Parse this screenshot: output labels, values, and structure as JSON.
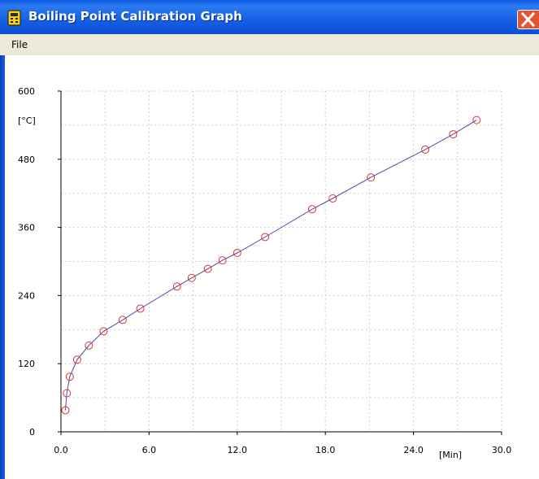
{
  "window": {
    "title": "Boiling Point Calibration Graph",
    "title_color": "#ffffff",
    "titlebar_color": "#0b5ce4",
    "close_color": "#e0562e"
  },
  "menu": {
    "items": [
      {
        "label": "File"
      }
    ]
  },
  "chart_data": {
    "type": "line",
    "title": "",
    "xlabel": "[Min]",
    "ylabel": "[°C]",
    "xlim": [
      0,
      30
    ],
    "ylim": [
      0,
      600
    ],
    "x_ticks": [
      "0.0",
      "6.0",
      "12.0",
      "18.0",
      "24.0",
      "30.0"
    ],
    "y_ticks": [
      "0",
      "120",
      "240",
      "360",
      "480",
      "600"
    ],
    "grid": true,
    "line_color": "#4a4aa8",
    "marker_color": "#e03030",
    "series": [
      {
        "x": [
          0.3,
          0.4,
          0.6,
          1.1,
          1.9,
          2.9,
          4.2,
          5.4,
          7.9,
          8.9,
          10.0,
          11.0,
          12.0,
          13.9,
          17.1,
          18.5,
          21.1,
          24.8,
          26.7,
          28.3
        ],
        "y": [
          38,
          68,
          97,
          127,
          152,
          177,
          197,
          217,
          256,
          271,
          287,
          302,
          315,
          343,
          392,
          411,
          448,
          497,
          524,
          549
        ]
      }
    ]
  }
}
